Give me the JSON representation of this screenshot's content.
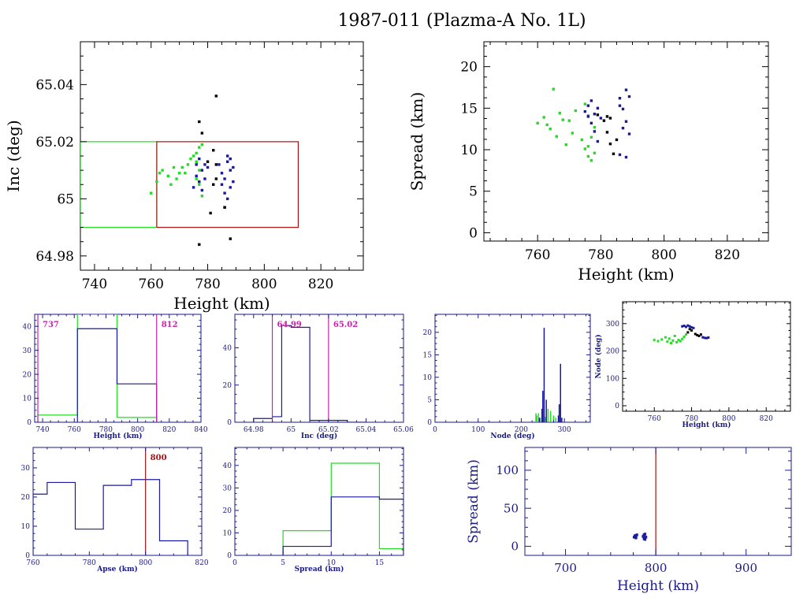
{
  "title": "1987-011 (Plazma-A No. 1L)",
  "colors": {
    "green": "#22dd22",
    "blue": "#1a1aa0",
    "black": "#000000",
    "red": "#aa1111",
    "magenta": "#cc22aa",
    "axis_small": "#1a1a8a"
  },
  "chart_data": [
    {
      "id": "inc-vs-height",
      "type": "scatter",
      "xlabel": "Height (km)",
      "ylabel": "Inc (deg)",
      "xlim": [
        735,
        835
      ],
      "ylim": [
        64.975,
        65.055
      ],
      "xticks": [
        740,
        760,
        780,
        800,
        820
      ],
      "yticks": [
        64.98,
        65,
        65.02,
        65.04
      ],
      "ytick_labels": [
        "64.98",
        "65",
        "65.02",
        "65.04"
      ],
      "rects": [
        {
          "color": "green",
          "x0": 735,
          "x1": 762,
          "y0": 64.99,
          "y1": 65.02
        },
        {
          "color": "red",
          "x0": 762,
          "x1": 812,
          "y0": 64.99,
          "y1": 65.02
        }
      ],
      "series": [
        {
          "color": "green",
          "points": [
            [
              760,
              65.002
            ],
            [
              762,
              65.006
            ],
            [
              763,
              65.009
            ],
            [
              764,
              65.01
            ],
            [
              766,
              65.008
            ],
            [
              767,
              65.005
            ],
            [
              768,
              65.011
            ],
            [
              769,
              65.007
            ],
            [
              770,
              65.009
            ],
            [
              771,
              65.011
            ],
            [
              772,
              65.009
            ],
            [
              773,
              65.012
            ],
            [
              774,
              65.014
            ],
            [
              775,
              65.015
            ],
            [
              776,
              65.016
            ],
            [
              776,
              65.013
            ],
            [
              777,
              65.018
            ],
            [
              777,
              65.01
            ],
            [
              777,
              65.005
            ],
            [
              778,
              65.001
            ],
            [
              776,
              65.007
            ],
            [
              778,
              65.019
            ]
          ]
        },
        {
          "color": "blue",
          "points": [
            [
              775,
              65.004
            ],
            [
              776,
              65.008
            ],
            [
              776,
              65.012
            ],
            [
              777,
              65.014
            ],
            [
              777,
              65.006
            ],
            [
              778,
              65.01
            ],
            [
              778,
              65.003
            ],
            [
              779,
              65.012
            ],
            [
              779,
              65.007
            ],
            [
              780,
              65.011
            ],
            [
              784,
              65.012
            ],
            [
              785,
              65.009
            ],
            [
              785,
              65.005
            ],
            [
              786,
              65.002
            ],
            [
              786,
              65.007
            ],
            [
              787,
              65.013
            ],
            [
              787,
              65.0
            ],
            [
              788,
              65.01
            ],
            [
              788,
              65.004
            ],
            [
              788,
              65.014
            ],
            [
              789,
              65.011
            ],
            [
              789,
              65.006
            ],
            [
              786,
              64.997
            ],
            [
              787,
              65.015
            ]
          ]
        },
        {
          "color": "black",
          "points": [
            [
              783,
              65.036
            ],
            [
              777,
              65.027
            ],
            [
              778,
              65.023
            ],
            [
              780,
              65.013
            ],
            [
              782,
              65.017
            ],
            [
              783,
              65.012
            ],
            [
              782,
              65.005
            ],
            [
              781,
              64.995
            ],
            [
              786,
              64.997
            ],
            [
              788,
              64.986
            ],
            [
              777,
              64.984
            ],
            [
              783,
              65.007
            ]
          ]
        }
      ]
    },
    {
      "id": "spread-vs-height",
      "type": "scatter",
      "xlabel": "Height (km)",
      "ylabel": "Spread (km)",
      "xlim": [
        743,
        833
      ],
      "ylim": [
        -1,
        23
      ],
      "xticks": [
        760,
        780,
        800,
        820
      ],
      "yticks": [
        0,
        5,
        10,
        15,
        20
      ],
      "series": [
        {
          "color": "green",
          "points": [
            [
              760,
              13.2
            ],
            [
              762,
              13.9
            ],
            [
              763,
              13.0
            ],
            [
              764,
              12.5
            ],
            [
              765,
              17.3
            ],
            [
              766,
              11.6
            ],
            [
              767,
              14.4
            ],
            [
              768,
              13.6
            ],
            [
              769,
              10.6
            ],
            [
              770,
              13.5
            ],
            [
              771,
              12.0
            ],
            [
              772,
              14.7
            ],
            [
              774,
              11.2
            ],
            [
              775,
              10.1
            ],
            [
              776,
              9.2
            ],
            [
              776,
              10.4
            ],
            [
              777,
              8.7
            ],
            [
              777,
              11.5
            ],
            [
              778,
              12.7
            ],
            [
              778,
              9.6
            ],
            [
              775,
              15.5
            ],
            [
              776,
              14.1
            ]
          ]
        },
        {
          "color": "blue",
          "points": [
            [
              775,
              14.6
            ],
            [
              776,
              14.0
            ],
            [
              776,
              15.3
            ],
            [
              777,
              13.2
            ],
            [
              777,
              15.9
            ],
            [
              778,
              14.3
            ],
            [
              778,
              12.2
            ],
            [
              779,
              15.0
            ],
            [
              779,
              11.0
            ],
            [
              780,
              13.8
            ],
            [
              786,
              16.2
            ],
            [
              786,
              15.3
            ],
            [
              786,
              9.4
            ],
            [
              787,
              14.9
            ],
            [
              787,
              12.6
            ],
            [
              788,
              17.2
            ],
            [
              788,
              9.1
            ],
            [
              788,
              13.4
            ],
            [
              789,
              16.4
            ],
            [
              789,
              11.9
            ]
          ]
        },
        {
          "color": "black",
          "points": [
            [
              779,
              14.2
            ],
            [
              781,
              13.5
            ],
            [
              782,
              12.1
            ],
            [
              783,
              13.8
            ],
            [
              784,
              9.5
            ],
            [
              783,
              10.7
            ],
            [
              785,
              11.2
            ],
            [
              782,
              14.0
            ]
          ]
        }
      ]
    },
    {
      "id": "hist-height",
      "type": "histogram",
      "xlabel": "Height (km)",
      "xlim": [
        735,
        840
      ],
      "ylim": [
        0,
        45
      ],
      "xticks": [
        740,
        760,
        780,
        800,
        820,
        840
      ],
      "yticks": [
        0,
        10,
        20,
        30,
        40
      ],
      "vlines": [
        {
          "x": 737,
          "label": "737",
          "color": "magenta"
        },
        {
          "x": 812,
          "label": "812",
          "color": "magenta"
        }
      ],
      "series": [
        {
          "color": "green",
          "edges": [
            737,
            762,
            787,
            812
          ],
          "values": [
            3,
            45,
            2
          ]
        },
        {
          "color": "blue",
          "edges": [
            762,
            787,
            812
          ],
          "values": [
            39,
            16
          ]
        }
      ]
    },
    {
      "id": "hist-inc",
      "type": "histogram",
      "xlabel": "Inc (deg)",
      "xlim": [
        64.97,
        65.06
      ],
      "ylim": [
        0,
        58
      ],
      "xticks": [
        64.98,
        65,
        65.02,
        65.04,
        65.06
      ],
      "xtick_labels": [
        "64.98",
        "65",
        "65.02",
        "65.04",
        "65.06"
      ],
      "yticks": [
        0,
        20,
        40
      ],
      "vlines": [
        {
          "x": 64.99,
          "label": "64.99",
          "color": "magenta"
        },
        {
          "x": 65.02,
          "label": "65.02",
          "color": "magenta"
        }
      ],
      "series": [
        {
          "color": "blue",
          "edges": [
            64.98,
            64.99,
            64.995,
            65.0,
            65.01,
            65.02,
            65.03,
            65.04
          ],
          "values": [
            2,
            3,
            52,
            51,
            1,
            1,
            0
          ]
        }
      ]
    },
    {
      "id": "hist-node",
      "type": "histogram",
      "xlabel": "Node (deg)",
      "xlim": [
        0,
        360
      ],
      "ylim": [
        0,
        24
      ],
      "xticks": [
        0,
        100,
        200,
        300
      ],
      "yticks": [
        0,
        5,
        10,
        15,
        20
      ],
      "series": [
        {
          "color": "green",
          "spikes": [
            [
              234,
              2
            ],
            [
              236,
              1.5
            ],
            [
              240,
              2
            ],
            [
              244,
              1
            ],
            [
              248,
              1.8
            ],
            [
              256,
              1.2
            ],
            [
              262,
              3
            ],
            [
              268,
              2.5
            ],
            [
              275,
              1.5
            ],
            [
              280,
              1
            ]
          ]
        },
        {
          "color": "blue",
          "spikes": [
            [
              242,
              1
            ],
            [
              248,
              3
            ],
            [
              250,
              7
            ],
            [
              253,
              21
            ],
            [
              258,
              5
            ],
            [
              286,
              1.5
            ],
            [
              288,
              4
            ],
            [
              291,
              13
            ],
            [
              294,
              1
            ]
          ]
        }
      ]
    },
    {
      "id": "node-vs-height",
      "type": "scatter",
      "xlabel": "Height (km)",
      "ylabel": "Node (deg)",
      "xlim": [
        743,
        833
      ],
      "ylim": [
        -20,
        380
      ],
      "xticks": [
        760,
        780,
        800,
        820
      ],
      "yticks": [
        0,
        100,
        200,
        300
      ],
      "series": [
        {
          "color": "green",
          "points": [
            [
              760,
              240
            ],
            [
              762,
              236
            ],
            [
              764,
              242
            ],
            [
              766,
              250
            ],
            [
              767,
              234
            ],
            [
              768,
              245
            ],
            [
              770,
              238
            ],
            [
              772,
              232
            ],
            [
              773,
              240
            ],
            [
              774,
              236
            ],
            [
              775,
              244
            ],
            [
              776,
              252
            ],
            [
              777,
              260
            ],
            [
              771,
              255
            ],
            [
              769,
              229
            ]
          ]
        },
        {
          "color": "blue",
          "points": [
            [
              775,
              290
            ],
            [
              776,
              292
            ],
            [
              777,
              288
            ],
            [
              778,
              293
            ],
            [
              779,
              290
            ],
            [
              780,
              286
            ],
            [
              781,
              284
            ],
            [
              786,
              250
            ],
            [
              787,
              248
            ],
            [
              788,
              247
            ],
            [
              789,
              249
            ]
          ]
        },
        {
          "color": "black",
          "points": [
            [
              778,
              268
            ],
            [
              780,
              275
            ],
            [
              782,
              262
            ],
            [
              783,
              258
            ],
            [
              784,
              255
            ],
            [
              785,
              260
            ],
            [
              779,
              280
            ]
          ]
        }
      ]
    },
    {
      "id": "hist-apse",
      "type": "histogram",
      "xlabel": "Apse (km)",
      "xlim": [
        760,
        820
      ],
      "ylim": [
        0,
        37
      ],
      "xticks": [
        760,
        780,
        800,
        820
      ],
      "yticks": [
        0,
        10,
        20,
        30
      ],
      "vlines": [
        {
          "x": 800,
          "label": "800",
          "color": "red"
        }
      ],
      "series": [
        {
          "color": "blue",
          "edges": [
            760,
            765,
            775,
            785,
            795,
            805,
            815
          ],
          "values": [
            21,
            25,
            9,
            24,
            26,
            5
          ]
        }
      ]
    },
    {
      "id": "hist-spread",
      "type": "histogram",
      "xlabel": "Spread (km)",
      "xlim": [
        0,
        17.5
      ],
      "ylim": [
        0,
        48
      ],
      "xticks": [
        0,
        5,
        10,
        15
      ],
      "yticks": [
        0,
        10,
        20,
        30,
        40
      ],
      "series": [
        {
          "color": "green",
          "edges": [
            5,
            10,
            15,
            17.5
          ],
          "values": [
            11,
            41,
            3
          ]
        },
        {
          "color": "blue",
          "edges": [
            5,
            10,
            15,
            17.5
          ],
          "values": [
            4,
            26,
            25
          ]
        }
      ]
    },
    {
      "id": "spread-vs-height-wide",
      "type": "scatter",
      "xlabel": "Height (km)",
      "ylabel": "Spread (km)",
      "xlim": [
        655,
        950
      ],
      "ylim": [
        -12,
        130
      ],
      "xticks": [
        700,
        800,
        900
      ],
      "yticks": [
        0,
        50,
        100
      ],
      "vlines": [
        {
          "x": 800,
          "color": "red"
        }
      ],
      "series": [
        {
          "color": "blue",
          "points": [
            [
              776,
              12
            ],
            [
              777,
              14
            ],
            [
              778,
              11
            ],
            [
              779,
              15
            ],
            [
              778,
              13
            ],
            [
              786,
              13
            ],
            [
              787,
              10
            ],
            [
              788,
              16
            ],
            [
              789,
              12
            ],
            [
              787,
              15
            ],
            [
              788,
              9
            ]
          ]
        }
      ]
    }
  ]
}
